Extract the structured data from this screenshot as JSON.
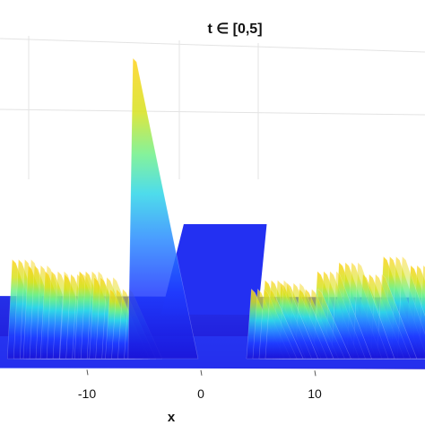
{
  "chart_data": {
    "type": "surface",
    "title": "t ∈ [0,5]",
    "xlabel": "x",
    "xticks": [
      -10,
      0,
      10
    ],
    "xtick_labels": [
      "-10",
      "0",
      "10"
    ],
    "xlim": [
      -17,
      20
    ],
    "tlim": [
      0,
      5
    ],
    "grid": true,
    "colormap": "jet",
    "peaks": [
      {
        "x": -16.2,
        "height": 0.32
      },
      {
        "x": -14.8,
        "height": 0.3
      },
      {
        "x": -13.3,
        "height": 0.28
      },
      {
        "x": -11.6,
        "height": 0.27
      },
      {
        "x": -10.3,
        "height": 0.28
      },
      {
        "x": -9.0,
        "height": 0.26
      },
      {
        "x": -7.6,
        "height": 0.22
      },
      {
        "x": -5.6,
        "height": 1.0
      },
      {
        "x": 4.8,
        "height": 0.22
      },
      {
        "x": 6.0,
        "height": 0.25
      },
      {
        "x": 7.4,
        "height": 0.24
      },
      {
        "x": 9.0,
        "height": 0.22
      },
      {
        "x": 10.6,
        "height": 0.28
      },
      {
        "x": 12.5,
        "height": 0.31
      },
      {
        "x": 14.6,
        "height": 0.27
      },
      {
        "x": 16.4,
        "height": 0.33
      },
      {
        "x": 18.8,
        "height": 0.3
      }
    ]
  }
}
